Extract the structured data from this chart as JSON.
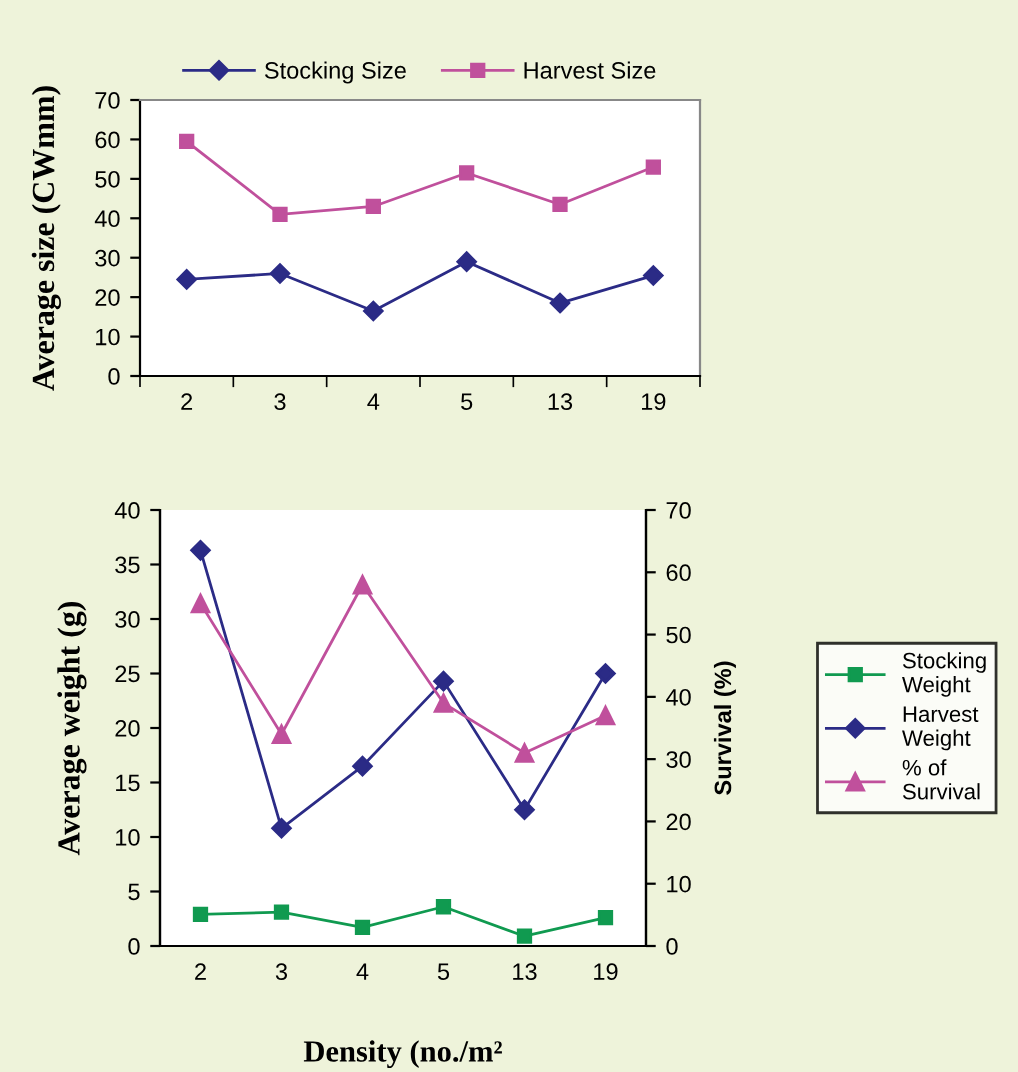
{
  "chart_data": [
    {
      "type": "line",
      "ylabel": "Average size (CWmm)",
      "categories": [
        "2",
        "3",
        "4",
        "5",
        "13",
        "19"
      ],
      "ylim": [
        0,
        70
      ],
      "yticks": [
        0,
        10,
        20,
        30,
        40,
        50,
        60,
        70
      ],
      "grid": false,
      "legend": "top",
      "series": [
        {
          "name": "Stocking Size",
          "color": "#2b2b86",
          "marker": "diamond",
          "values": [
            24.5,
            26,
            16.5,
            29,
            18.5,
            25.5
          ]
        },
        {
          "name": "Harvest Size",
          "color": "#c0509c",
          "marker": "square",
          "values": [
            59.5,
            41,
            43,
            51.5,
            43.5,
            53
          ]
        }
      ]
    },
    {
      "type": "line",
      "xlabel": "Density (no./m²",
      "ylabel": "Average weight (g)",
      "y2label": "Survival (%)",
      "categories": [
        "2",
        "3",
        "4",
        "5",
        "13",
        "19"
      ],
      "ylim": [
        0,
        40
      ],
      "yticks": [
        0,
        5,
        10,
        15,
        20,
        25,
        30,
        35,
        40
      ],
      "y2lim": [
        0,
        70
      ],
      "y2ticks": [
        0,
        10,
        20,
        30,
        40,
        50,
        60,
        70
      ],
      "grid": false,
      "legend": "right",
      "series": [
        {
          "name": "Stocking Weight",
          "color": "#109a50",
          "marker": "square",
          "values": [
            2.9,
            3.1,
            1.7,
            3.6,
            0.9,
            2.6
          ]
        },
        {
          "name": "Harvest Weight",
          "color": "#2b2b86",
          "marker": "diamond",
          "values": [
            36.3,
            10.8,
            16.5,
            24.3,
            12.5,
            25
          ]
        },
        {
          "name": "% of Survival",
          "color": "#c0509c",
          "marker": "triangle",
          "axis": "y2",
          "values": [
            55,
            34,
            58,
            39,
            31,
            37
          ]
        }
      ]
    }
  ]
}
